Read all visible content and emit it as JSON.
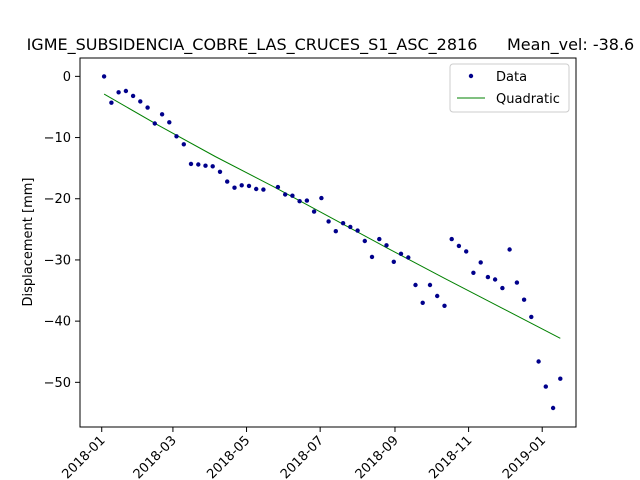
{
  "chart_data": {
    "type": "scatter",
    "title": "IGME_SUBSIDENCIA_COBRE_LAS_CRUCES_S1_ASC_2816",
    "subtitle": "Mean_vel: -38.6",
    "xlabel": "",
    "ylabel": "Displacement [mm]",
    "grid": false,
    "legend_position": "top-right",
    "x_range": [
      "2017-12-14",
      "2019-01-29"
    ],
    "ylim": [
      -57.3,
      3.0
    ],
    "x_ticks": [
      "2018-01",
      "2018-03",
      "2018-05",
      "2018-07",
      "2018-09",
      "2018-11",
      "2019-01"
    ],
    "x_tick_dates": [
      "2018-01-01",
      "2018-03-01",
      "2018-05-01",
      "2018-07-01",
      "2018-09-01",
      "2018-11-01",
      "2019-01-01"
    ],
    "y_ticks": [
      0,
      -10,
      -20,
      -30,
      -40,
      -50
    ],
    "series": [
      {
        "name": "Data",
        "color": "#00008b",
        "x": [
          "2018-01-03",
          "2018-01-09",
          "2018-01-15",
          "2018-01-21",
          "2018-01-27",
          "2018-02-02",
          "2018-02-08",
          "2018-02-14",
          "2018-02-20",
          "2018-02-26",
          "2018-03-04",
          "2018-03-10",
          "2018-03-16",
          "2018-03-22",
          "2018-03-28",
          "2018-04-03",
          "2018-04-09",
          "2018-04-15",
          "2018-04-21",
          "2018-04-27",
          "2018-05-03",
          "2018-05-09",
          "2018-05-15",
          "2018-05-27",
          "2018-06-02",
          "2018-06-08",
          "2018-06-14",
          "2018-06-20",
          "2018-06-26",
          "2018-07-02",
          "2018-07-08",
          "2018-07-14",
          "2018-07-20",
          "2018-07-26",
          "2018-08-01",
          "2018-08-07",
          "2018-08-13",
          "2018-08-19",
          "2018-08-25",
          "2018-08-31",
          "2018-09-06",
          "2018-09-12",
          "2018-09-18",
          "2018-09-24",
          "2018-09-30",
          "2018-10-06",
          "2018-10-12",
          "2018-10-18",
          "2018-10-24",
          "2018-10-30",
          "2018-11-05",
          "2018-11-11",
          "2018-11-17",
          "2018-11-23",
          "2018-11-29",
          "2018-12-05",
          "2018-12-11",
          "2018-12-17",
          "2018-12-23",
          "2018-12-29",
          "2019-01-04",
          "2019-01-10",
          "2019-01-16"
        ],
        "y": [
          0.0,
          -4.3,
          -2.6,
          -2.4,
          -3.2,
          -4.1,
          -5.1,
          -7.7,
          -6.2,
          -7.5,
          -9.8,
          -11.1,
          -14.3,
          -14.4,
          -14.6,
          -14.7,
          -15.6,
          -17.2,
          -18.2,
          -17.8,
          -17.9,
          -18.4,
          -18.5,
          -18.1,
          -19.3,
          -19.5,
          -20.4,
          -20.3,
          -22.1,
          -19.9,
          -23.7,
          -25.3,
          -24.0,
          -24.6,
          -25.2,
          -26.9,
          -29.5,
          -26.6,
          -27.6,
          -30.3,
          -29.0,
          -29.6,
          -34.1,
          -37.0,
          -34.1,
          -35.9,
          -37.5,
          -26.6,
          -27.7,
          -28.6,
          -32.1,
          -30.4,
          -32.8,
          -33.2,
          -34.6,
          -28.3,
          -33.7,
          -36.5,
          -39.3,
          -46.6,
          -50.7,
          -54.2,
          -49.4
        ]
      },
      {
        "name": "Quadratic",
        "color": "#008000",
        "x": [
          "2018-01-03",
          "2018-02-17",
          "2018-04-05",
          "2018-05-24",
          "2018-07-10",
          "2018-08-26",
          "2018-10-12",
          "2018-11-29",
          "2019-01-16"
        ],
        "y": [
          -2.9,
          -8.0,
          -13.1,
          -18.1,
          -23.1,
          -28.1,
          -33.0,
          -37.9,
          -42.8
        ]
      }
    ]
  }
}
